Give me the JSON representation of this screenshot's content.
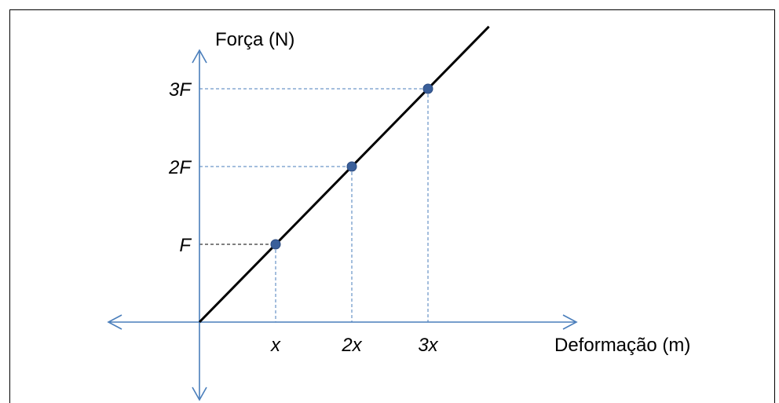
{
  "chart_data": {
    "type": "line",
    "xlabel": "Deformação (m)",
    "ylabel": "Força (N)",
    "x_ticks": [
      "x",
      "2x",
      "3x"
    ],
    "y_ticks": [
      "F",
      "2F",
      "3F"
    ],
    "series": [
      {
        "x": [
          0,
          1,
          2,
          3
        ],
        "y": [
          0,
          1,
          2,
          3
        ]
      }
    ],
    "points": [
      {
        "x": 1,
        "y": 1
      },
      {
        "x": 2,
        "y": 2
      },
      {
        "x": 3,
        "y": 3
      }
    ],
    "grid": false,
    "colors": {
      "axis": "#4a7ebb",
      "line": "#000000",
      "point": "#3a5f9a"
    }
  }
}
